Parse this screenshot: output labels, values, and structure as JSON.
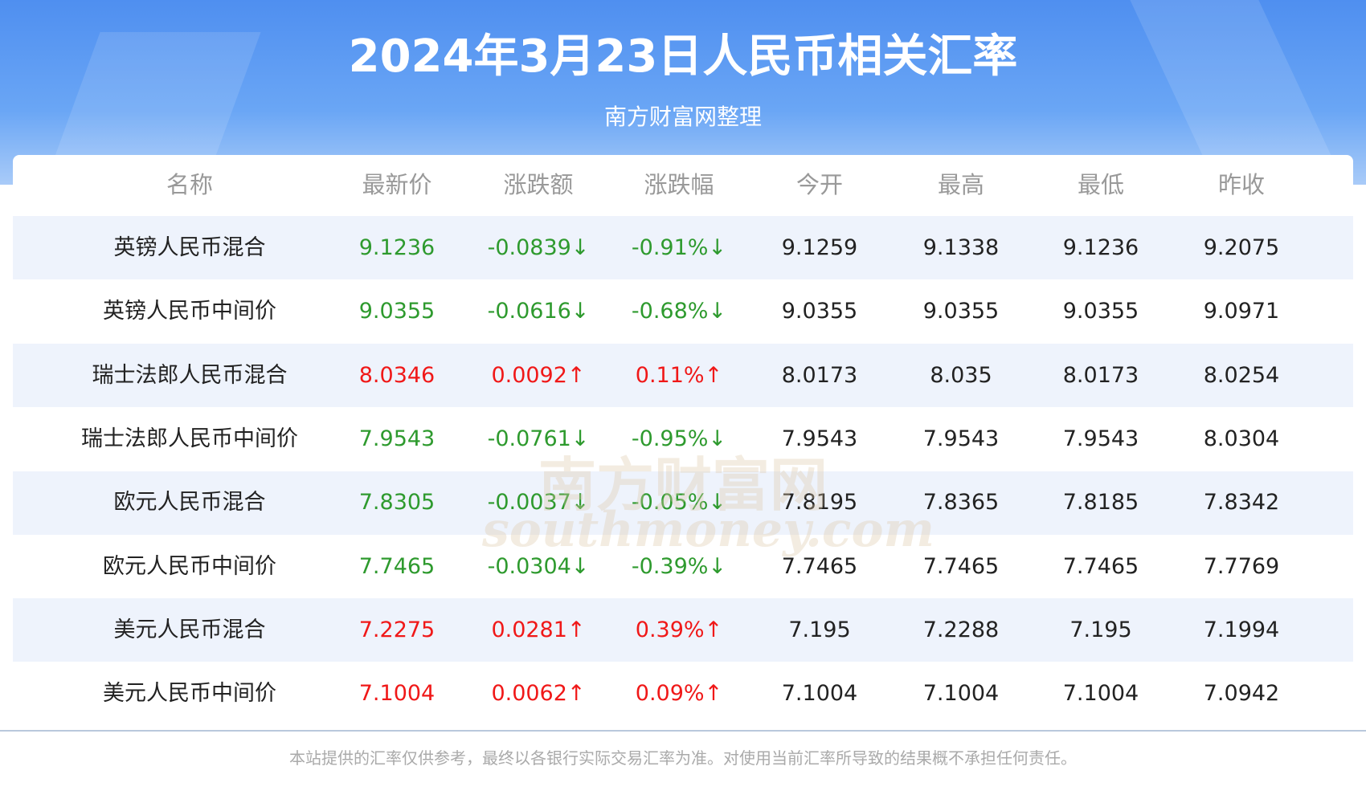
{
  "header": {
    "title": "2024年3月23日人民币相关汇率",
    "subtitle": "南方财富网整理"
  },
  "table": {
    "columns": [
      "名称",
      "最新价",
      "涨跌额",
      "涨跌幅",
      "今开",
      "最高",
      "最低",
      "昨收"
    ],
    "rows": [
      [
        "英镑人民币混合",
        "9.1236",
        "-0.0839↓",
        "-0.91%↓",
        "9.1259",
        "9.1338",
        "9.1236",
        "9.2075"
      ],
      [
        "英镑人民币中间价",
        "9.0355",
        "-0.0616↓",
        "-0.68%↓",
        "9.0355",
        "9.0355",
        "9.0355",
        "9.0971"
      ],
      [
        "瑞士法郎人民币混合",
        "8.0346",
        "0.0092↑",
        "0.11%↑",
        "8.0173",
        "8.035",
        "8.0173",
        "8.0254"
      ],
      [
        "瑞士法郎人民币中间价",
        "7.9543",
        "-0.0761↓",
        "-0.95%↓",
        "7.9543",
        "7.9543",
        "7.9543",
        "8.0304"
      ],
      [
        "欧元人民币混合",
        "7.8305",
        "-0.0037↓",
        "-0.05%↓",
        "7.8195",
        "7.8365",
        "7.8185",
        "7.8342"
      ],
      [
        "欧元人民币中间价",
        "7.7465",
        "-0.0304↓",
        "-0.39%↓",
        "7.7465",
        "7.7465",
        "7.7465",
        "7.7769"
      ],
      [
        "美元人民币混合",
        "7.2275",
        "0.0281↑",
        "0.39%↑",
        "7.195",
        "7.2288",
        "7.195",
        "7.1994"
      ],
      [
        "美元人民币中间价",
        "7.1004",
        "0.0062↑",
        "0.09%↑",
        "7.1004",
        "7.1004",
        "7.1004",
        "7.0942"
      ]
    ]
  },
  "watermark": {
    "cn": "南方财富网",
    "en": "southmoney.com"
  },
  "footer": {
    "note": "本站提供的汇率仅供参考，最终以各银行实际交易汇率为准。对使用当前汇率所导致的结果概不承担任何责任。"
  }
}
